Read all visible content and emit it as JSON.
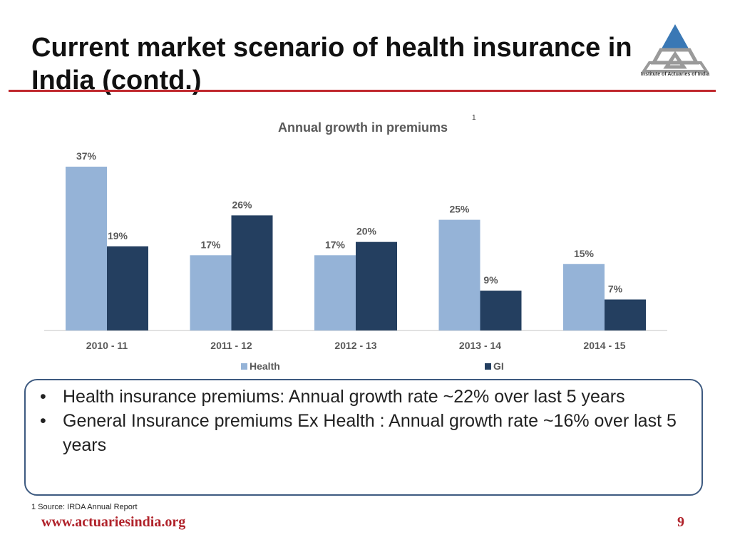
{
  "slide": {
    "title": "Current market scenario of health insurance in India (contd.)",
    "logo_text": "Institute of Actuaries of India",
    "footnote": "1  Source: IRDA Annual Report",
    "website": "www.actuariesindia.org",
    "page_number": "9"
  },
  "bullets": [
    "Health insurance premiums: Annual growth rate ~22% over last 5 years",
    "General Insurance premiums Ex Health : Annual growth rate ~16% over last 5 years"
  ],
  "colors": {
    "accent": "#c0282d",
    "health": "#95b3d7",
    "gi": "#243f60",
    "box_border": "#3d5a80"
  },
  "chart_data": {
    "type": "bar",
    "title": "Annual growth in premiums",
    "title_superscript": "1",
    "categories": [
      "2010 - 11",
      "2011 - 12",
      "2012 - 13",
      "2013 - 14",
      "2014 - 15"
    ],
    "series": [
      {
        "name": "Health",
        "values": [
          37,
          17,
          17,
          25,
          15
        ],
        "labels": [
          "37%",
          "17%",
          "17%",
          "25%",
          "15%"
        ],
        "color": "#95b3d7"
      },
      {
        "name": "GI",
        "values": [
          19,
          26,
          20,
          9,
          7
        ],
        "labels": [
          "19%",
          "26%",
          "20%",
          "9%",
          "7%"
        ],
        "color": "#243f60"
      }
    ],
    "unit": "%",
    "ylim": [
      0,
      40
    ],
    "grid": false,
    "legend": "bottom"
  }
}
